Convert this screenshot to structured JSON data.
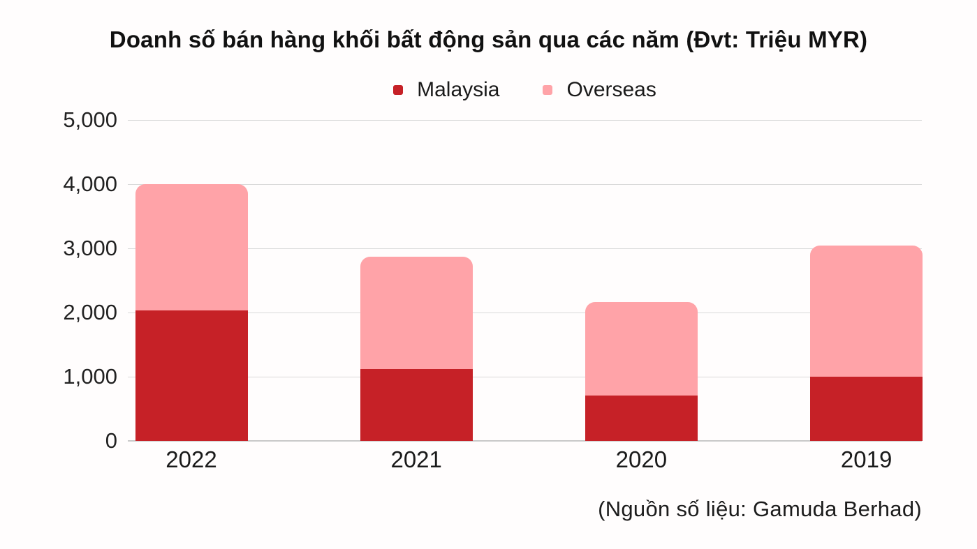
{
  "title": "Doanh số bán hàng khối bất động sản qua các năm (Đvt: Triệu MYR)",
  "source_note": "(Nguồn số liệu: Gamuda Berhad)",
  "colors": {
    "malaysia": "#c62127",
    "overseas": "#ffa3a8",
    "gridline": "#d9d9d9",
    "axis_line": "#c9c9c9",
    "text": "#1a1a1a",
    "background": "#fffdfd"
  },
  "chart_data": {
    "type": "bar",
    "stacked": true,
    "title": "Doanh số bán hàng khối bất động sản qua các năm (Đvt: Triệu MYR)",
    "categories": [
      "2022",
      "2021",
      "2020",
      "2019"
    ],
    "series": [
      {
        "name": "Malaysia",
        "color": "#c62127",
        "values": [
          2030,
          1120,
          710,
          1000
        ]
      },
      {
        "name": "Overseas",
        "color": "#ffa3a8",
        "values": [
          1970,
          1750,
          1450,
          2040
        ]
      }
    ],
    "totals": [
      4000,
      2870,
      2160,
      3040
    ],
    "xlabel": "",
    "ylabel": "",
    "ylim": [
      0,
      5000
    ],
    "yticks": [
      0,
      1000,
      2000,
      3000,
      4000,
      5000
    ],
    "ytick_labels": [
      "0",
      "1,000",
      "2,000",
      "3,000",
      "4,000",
      "5,000"
    ],
    "grid": true,
    "legend_position": "top-center",
    "annotation": "(Nguồn số liệu: Gamuda Berhad)"
  }
}
